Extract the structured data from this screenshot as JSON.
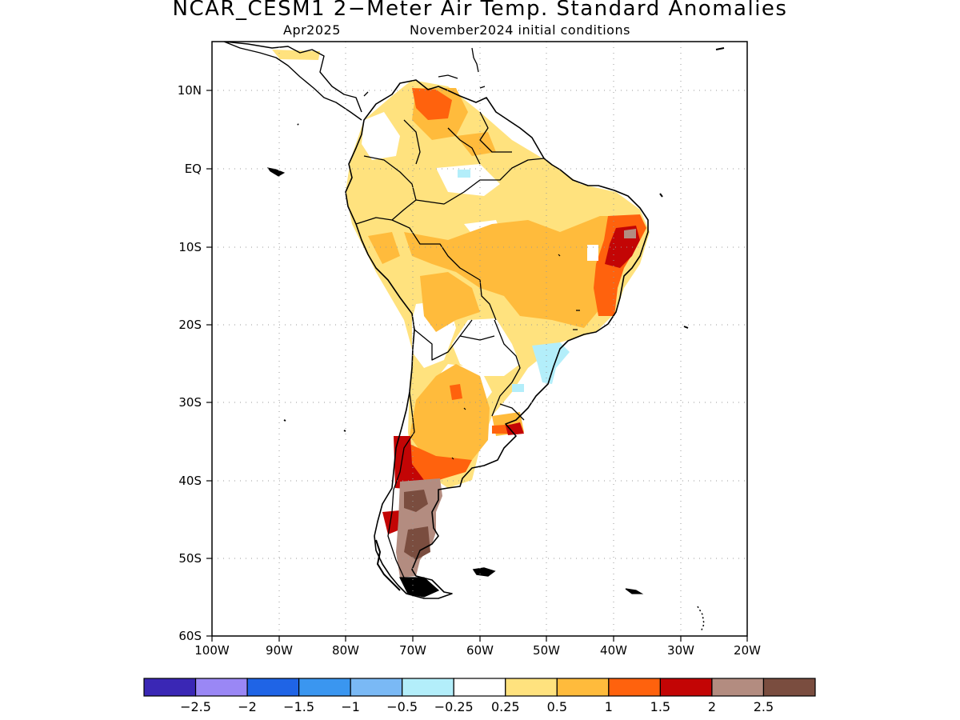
{
  "map": {
    "title": "NCAR_CESM1 2−Meter Air Temp. Standard Anomalies",
    "valid_month": "Apr2025",
    "init_conditions": "November2024 initial conditions",
    "lat_labels": [
      "10N",
      "EQ",
      "10S",
      "20S",
      "30S",
      "40S",
      "50S",
      "60S"
    ],
    "lon_labels": [
      "100W",
      "90W",
      "80W",
      "70W",
      "60W",
      "50W",
      "40W",
      "30W",
      "20W"
    ]
  },
  "colorbar": {
    "colors": [
      "#3a27b5",
      "#9a87f5",
      "#1f64e6",
      "#3a96f0",
      "#7ab9f5",
      "#b3eefa",
      "#ffffff",
      "#ffe27e",
      "#ffbb3c",
      "#ff620d",
      "#c30505",
      "#b38c80",
      "#7a4d3f"
    ],
    "labels": [
      "−2.5",
      "−2",
      "−1.5",
      "−1",
      "−0.5",
      "−0.25",
      "0.25",
      "0.5",
      "1",
      "1.5",
      "2",
      "2.5"
    ]
  },
  "colors": {
    "land_outline": "#000000",
    "grid": "#999999"
  }
}
